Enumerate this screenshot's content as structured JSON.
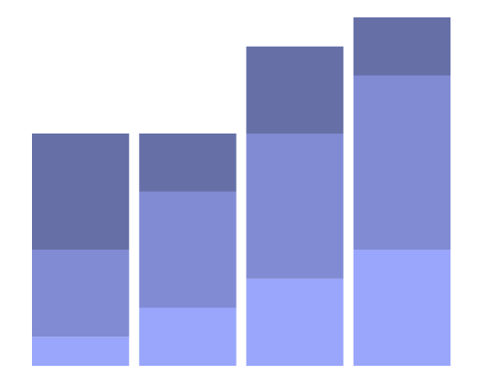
{
  "chart_data": {
    "type": "bar",
    "stacked": true,
    "categories": [
      "",
      "",
      "",
      ""
    ],
    "ylim": [
      0,
      12
    ],
    "grid": false,
    "legend": "none",
    "series": [
      {
        "values": [
          1,
          2,
          3,
          4
        ],
        "color": "#9aa6fb"
      },
      {
        "values": [
          3,
          4,
          5,
          6
        ],
        "color": "#818bd4"
      },
      {
        "values": [
          4,
          2,
          3,
          2
        ],
        "color": "#6670a7"
      }
    ]
  }
}
